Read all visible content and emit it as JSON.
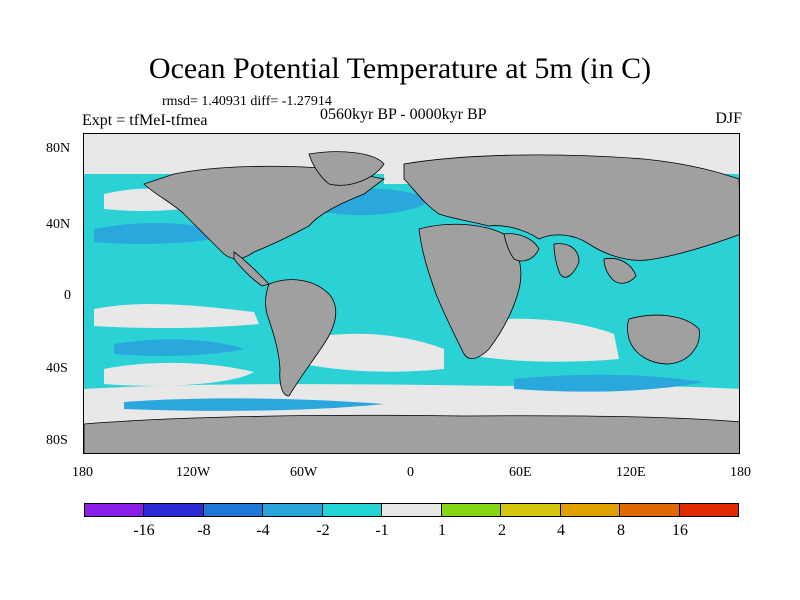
{
  "title": "Ocean Potential Temperature at 5m (in C)",
  "stats_text": "rmsd= 1.40931 diff= -1.27914",
  "experiment_text": "Expt = tfMeI-tfmea",
  "period_text": "0560kyr BP - 0000kyr BP",
  "season_text": "DJF",
  "lat_labels": [
    "80N",
    "40N",
    "0",
    "40S",
    "80S"
  ],
  "lon_labels": [
    "180",
    "120W",
    "60W",
    "0",
    "60E",
    "120E",
    "180"
  ],
  "colorbar": {
    "colors": [
      "#8a1ee6",
      "#2a2ad6",
      "#1f78d8",
      "#27a6dc",
      "#23d4d4",
      "#e8e8e8",
      "#86d617",
      "#d6c60e",
      "#e0a000",
      "#e06a00",
      "#e02a00"
    ],
    "labels": [
      "-16",
      "-8",
      "-4",
      "-2",
      "-1",
      "1",
      "2",
      "4",
      "8",
      "16"
    ]
  },
  "land_color": "#a0a0a0",
  "ocean_colors": {
    "weak_cooling": "#2ad2d6",
    "moderate_cooling": "#2aa8de",
    "near_zero": "#e8e8e8"
  }
}
